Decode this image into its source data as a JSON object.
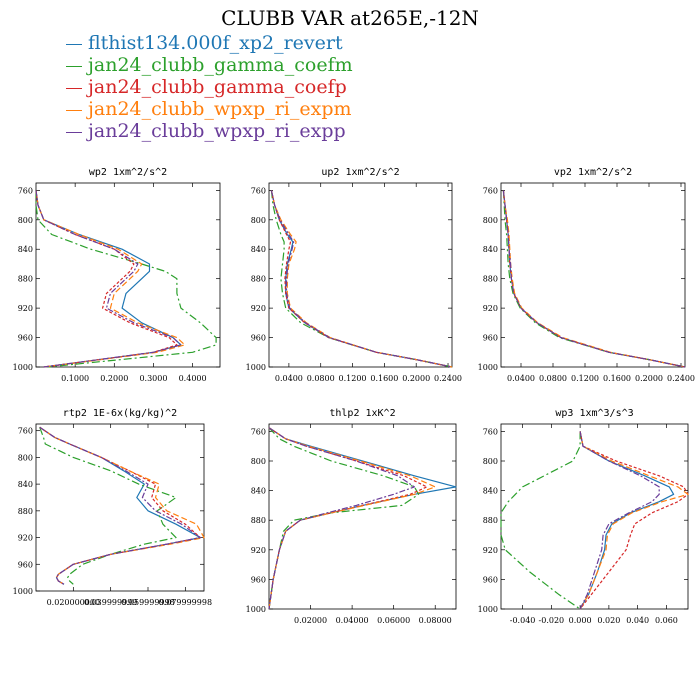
{
  "title": "CLUBB VAR at265E,-12N",
  "legend": {
    "items": [
      {
        "label": "flthist134.000f_xp2_revert",
        "color": "#1f77b4"
      },
      {
        "label": "jan24_clubb_gamma_coefm",
        "color": "#2ca02c"
      },
      {
        "label": "jan24_clubb_gamma_coefp",
        "color": "#d62728"
      },
      {
        "label": "jan24_clubb_wpxp_ri_expm",
        "color": "#ff7f0e"
      },
      {
        "label": "jan24_clubb_wpxp_ri_expp",
        "color": "#6a3d9a"
      }
    ]
  },
  "chart_data": [
    {
      "type": "line",
      "title": "wp2   1xm^2/s^2",
      "xlim": [
        0,
        0.47
      ],
      "xticks": [
        0.1,
        0.2,
        0.3,
        0.4
      ],
      "xticklabels": [
        "0.1000",
        "0.2000",
        "0.3000",
        "0.4000"
      ],
      "ylim": [
        1000,
        750
      ],
      "yticks": [
        760,
        800,
        840,
        880,
        920,
        960,
        1000
      ],
      "y": [
        760,
        780,
        800,
        820,
        840,
        860,
        870,
        880,
        900,
        920,
        940,
        960,
        970,
        980,
        1000
      ],
      "series": [
        {
          "color": "#1f77b4",
          "dash": "",
          "values": [
            0.0,
            0.005,
            0.02,
            0.11,
            0.22,
            0.29,
            0.29,
            0.27,
            0.23,
            0.22,
            0.27,
            0.35,
            0.37,
            0.3,
            0.02
          ]
        },
        {
          "color": "#2ca02c",
          "dash": "8,3,2,3",
          "values": [
            0.0,
            0.0,
            0.005,
            0.04,
            0.14,
            0.27,
            0.33,
            0.36,
            0.36,
            0.37,
            0.42,
            0.46,
            0.46,
            0.4,
            0.03
          ]
        },
        {
          "color": "#d62728",
          "dash": "3,2",
          "values": [
            0.0,
            0.005,
            0.02,
            0.1,
            0.2,
            0.25,
            0.24,
            0.22,
            0.18,
            0.17,
            0.24,
            0.34,
            0.36,
            0.3,
            0.02
          ]
        },
        {
          "color": "#ff7f0e",
          "dash": "6,3",
          "values": [
            0.0,
            0.005,
            0.02,
            0.11,
            0.21,
            0.27,
            0.26,
            0.24,
            0.2,
            0.19,
            0.26,
            0.36,
            0.38,
            0.31,
            0.02
          ]
        },
        {
          "color": "#6a3d9a",
          "dash": "6,2,2,2",
          "values": [
            0.0,
            0.005,
            0.02,
            0.1,
            0.2,
            0.26,
            0.25,
            0.23,
            0.19,
            0.18,
            0.25,
            0.35,
            0.37,
            0.3,
            0.02
          ]
        }
      ]
    },
    {
      "type": "line",
      "title": "up2   1xm^2/s^2",
      "xlim": [
        0.015,
        0.245
      ],
      "xticks": [
        0.04,
        0.08,
        0.12,
        0.16,
        0.2,
        0.24
      ],
      "xticklabels": [
        "0.0400",
        "0.0800",
        "0.1200",
        "0.1600",
        "0.2000",
        "0.2400"
      ],
      "ylim": [
        1000,
        750
      ],
      "yticks": [
        760,
        800,
        840,
        880,
        920,
        960,
        1000
      ],
      "y": [
        760,
        780,
        800,
        820,
        830,
        840,
        860,
        880,
        900,
        920,
        940,
        960,
        980,
        990,
        1000
      ],
      "series": [
        {
          "color": "#1f77b4",
          "dash": "",
          "values": [
            0.018,
            0.022,
            0.028,
            0.038,
            0.045,
            0.043,
            0.038,
            0.036,
            0.036,
            0.04,
            0.06,
            0.09,
            0.15,
            0.2,
            0.245
          ]
        },
        {
          "color": "#2ca02c",
          "dash": "8,3,2,3",
          "values": [
            0.018,
            0.02,
            0.024,
            0.03,
            0.034,
            0.034,
            0.032,
            0.03,
            0.032,
            0.036,
            0.055,
            0.09,
            0.15,
            0.2,
            0.245
          ]
        },
        {
          "color": "#d62728",
          "dash": "3,2",
          "values": [
            0.018,
            0.022,
            0.028,
            0.037,
            0.042,
            0.04,
            0.037,
            0.035,
            0.036,
            0.04,
            0.06,
            0.09,
            0.15,
            0.2,
            0.245
          ]
        },
        {
          "color": "#ff7f0e",
          "dash": "6,3",
          "values": [
            0.018,
            0.022,
            0.03,
            0.042,
            0.049,
            0.047,
            0.04,
            0.038,
            0.038,
            0.042,
            0.062,
            0.092,
            0.15,
            0.2,
            0.245
          ]
        },
        {
          "color": "#6a3d9a",
          "dash": "6,2,2,2",
          "values": [
            0.018,
            0.022,
            0.029,
            0.04,
            0.046,
            0.044,
            0.039,
            0.037,
            0.037,
            0.041,
            0.061,
            0.091,
            0.15,
            0.2,
            0.245
          ]
        }
      ]
    },
    {
      "type": "line",
      "title": "vp2   1xm^2/s^2",
      "xlim": [
        0.015,
        0.245
      ],
      "xticks": [
        0.04,
        0.08,
        0.12,
        0.16,
        0.2,
        0.24
      ],
      "xticklabels": [
        "0.0400",
        "0.0800",
        "0.1200",
        "0.1600",
        "0.2000",
        "0.2400"
      ],
      "ylim": [
        1000,
        750
      ],
      "yticks": [
        760,
        800,
        840,
        880,
        920,
        960,
        1000
      ],
      "y": [
        760,
        780,
        800,
        820,
        840,
        860,
        880,
        900,
        920,
        940,
        960,
        980,
        990,
        1000
      ],
      "series": [
        {
          "color": "#1f77b4",
          "dash": "",
          "values": [
            0.018,
            0.02,
            0.022,
            0.024,
            0.025,
            0.026,
            0.028,
            0.031,
            0.04,
            0.06,
            0.09,
            0.15,
            0.2,
            0.245
          ]
        },
        {
          "color": "#2ca02c",
          "dash": "8,3,2,3",
          "values": [
            0.018,
            0.019,
            0.02,
            0.022,
            0.023,
            0.024,
            0.026,
            0.03,
            0.039,
            0.058,
            0.088,
            0.15,
            0.2,
            0.245
          ]
        },
        {
          "color": "#d62728",
          "dash": "3,2",
          "values": [
            0.018,
            0.02,
            0.022,
            0.024,
            0.025,
            0.026,
            0.028,
            0.031,
            0.04,
            0.06,
            0.09,
            0.15,
            0.2,
            0.245
          ]
        },
        {
          "color": "#ff7f0e",
          "dash": "6,3",
          "values": [
            0.018,
            0.02,
            0.023,
            0.025,
            0.026,
            0.027,
            0.029,
            0.032,
            0.041,
            0.061,
            0.092,
            0.152,
            0.2,
            0.245
          ]
        },
        {
          "color": "#6a3d9a",
          "dash": "6,2,2,2",
          "values": [
            0.018,
            0.02,
            0.022,
            0.024,
            0.025,
            0.027,
            0.028,
            0.031,
            0.04,
            0.06,
            0.09,
            0.15,
            0.2,
            0.245
          ]
        }
      ]
    },
    {
      "type": "line",
      "title": "rtp2   1E-6x(kg/kg)^2",
      "xlim": [
        0.0,
        0.09
      ],
      "xticks": [
        0.02,
        0.04,
        0.06,
        0.08
      ],
      "xticklabels": [
        "0.020000000",
        "0.039999999",
        "0.059999998",
        "0.079999998"
      ],
      "ylim": [
        1000,
        750
      ],
      "yticks": [
        760,
        800,
        840,
        880,
        920,
        960,
        1000
      ],
      "y": [
        755,
        770,
        780,
        800,
        820,
        840,
        860,
        880,
        900,
        920,
        930,
        945,
        960,
        975,
        980,
        985,
        990
      ],
      "series": [
        {
          "color": "#1f77b4",
          "dash": "",
          "values": [
            0.002,
            0.01,
            0.018,
            0.035,
            0.047,
            0.058,
            0.054,
            0.06,
            0.075,
            0.088,
            0.07,
            0.04,
            0.02,
            0.012,
            0.011,
            0.012,
            0.015
          ]
        },
        {
          "color": "#2ca02c",
          "dash": "8,3,2,3",
          "values": [
            0.002,
            0.004,
            0.005,
            0.02,
            0.04,
            0.055,
            0.075,
            0.065,
            0.068,
            0.075,
            0.058,
            0.04,
            0.025,
            0.018,
            0.017,
            0.018,
            0.02
          ]
        },
        {
          "color": "#d62728",
          "dash": "3,2",
          "values": [
            0.002,
            0.01,
            0.018,
            0.035,
            0.05,
            0.064,
            0.062,
            0.068,
            0.08,
            0.088,
            0.07,
            0.04,
            0.02,
            0.012,
            0.011,
            0.012,
            0.015
          ]
        },
        {
          "color": "#ff7f0e",
          "dash": "6,3",
          "values": [
            0.002,
            0.01,
            0.018,
            0.035,
            0.05,
            0.066,
            0.064,
            0.07,
            0.086,
            0.09,
            0.072,
            0.04,
            0.02,
            0.012,
            0.011,
            0.012,
            0.015
          ]
        },
        {
          "color": "#6a3d9a",
          "dash": "6,2,2,2",
          "values": [
            0.002,
            0.01,
            0.018,
            0.035,
            0.048,
            0.06,
            0.057,
            0.064,
            0.078,
            0.088,
            0.07,
            0.04,
            0.02,
            0.012,
            0.011,
            0.012,
            0.015
          ]
        }
      ]
    },
    {
      "type": "line",
      "title": "thlp2   1xK^2",
      "xlim": [
        0.0,
        0.09
      ],
      "xticks": [
        0.02,
        0.04,
        0.06,
        0.08
      ],
      "xticklabels": [
        "0.02000",
        "0.04000",
        "0.06000",
        "0.08000"
      ],
      "ylim": [
        1000,
        750
      ],
      "yticks": [
        760,
        800,
        840,
        880,
        920,
        960,
        1000
      ],
      "y": [
        755,
        770,
        780,
        800,
        820,
        835,
        845,
        860,
        870,
        880,
        895,
        920,
        960,
        1000
      ],
      "series": [
        {
          "color": "#1f77b4",
          "dash": "",
          "values": [
            0.0,
            0.008,
            0.02,
            0.045,
            0.07,
            0.09,
            0.07,
            0.045,
            0.03,
            0.015,
            0.008,
            0.005,
            0.002,
            0.0
          ]
        },
        {
          "color": "#2ca02c",
          "dash": "8,3,2,3",
          "values": [
            0.0,
            0.005,
            0.012,
            0.03,
            0.055,
            0.07,
            0.072,
            0.064,
            0.03,
            0.012,
            0.007,
            0.005,
            0.002,
            0.0
          ]
        },
        {
          "color": "#d62728",
          "dash": "3,2",
          "values": [
            0.0,
            0.008,
            0.018,
            0.042,
            0.065,
            0.076,
            0.068,
            0.045,
            0.03,
            0.015,
            0.008,
            0.005,
            0.002,
            0.0
          ]
        },
        {
          "color": "#ff7f0e",
          "dash": "6,3",
          "values": [
            0.0,
            0.008,
            0.019,
            0.044,
            0.068,
            0.08,
            0.07,
            0.046,
            0.03,
            0.015,
            0.008,
            0.005,
            0.002,
            0.0
          ]
        },
        {
          "color": "#6a3d9a",
          "dash": "6,2,2,2",
          "values": [
            0.0,
            0.008,
            0.018,
            0.042,
            0.062,
            0.07,
            0.06,
            0.042,
            0.028,
            0.015,
            0.008,
            0.005,
            0.002,
            0.0
          ]
        }
      ]
    },
    {
      "type": "line",
      "title": "wp3   1xm^3/s^3",
      "xlim": [
        -0.055,
        0.075
      ],
      "xticks": [
        -0.04,
        -0.02,
        0.0,
        0.02,
        0.04,
        0.06
      ],
      "xticklabels": [
        "-0.040",
        "-0.020",
        "0.000",
        "0.020",
        "0.040",
        "0.060"
      ],
      "ylim": [
        1000,
        750
      ],
      "yticks": [
        760,
        800,
        840,
        880,
        920,
        960,
        1000
      ],
      "y": [
        760,
        780,
        800,
        820,
        835,
        845,
        855,
        870,
        885,
        900,
        920,
        950,
        980,
        1000
      ],
      "series": [
        {
          "color": "#1f77b4",
          "dash": "",
          "values": [
            0.0,
            0.002,
            0.02,
            0.045,
            0.062,
            0.065,
            0.055,
            0.035,
            0.022,
            0.018,
            0.017,
            0.012,
            0.006,
            0.0
          ]
        },
        {
          "color": "#2ca02c",
          "dash": "8,3,2,3",
          "values": [
            0.0,
            0.0,
            -0.005,
            -0.025,
            -0.04,
            -0.045,
            -0.05,
            -0.055,
            -0.055,
            -0.055,
            -0.052,
            -0.035,
            -0.015,
            0.0
          ]
        },
        {
          "color": "#d62728",
          "dash": "3,2",
          "values": [
            0.0,
            0.002,
            0.025,
            0.055,
            0.072,
            0.075,
            0.068,
            0.05,
            0.038,
            0.035,
            0.032,
            0.02,
            0.008,
            0.0
          ]
        },
        {
          "color": "#ff7f0e",
          "dash": "6,3",
          "values": [
            0.0,
            0.002,
            0.022,
            0.048,
            0.068,
            0.075,
            0.057,
            0.036,
            0.023,
            0.019,
            0.018,
            0.012,
            0.006,
            0.0
          ]
        },
        {
          "color": "#6a3d9a",
          "dash": "6,2,2,2",
          "values": [
            0.0,
            0.002,
            0.02,
            0.042,
            0.055,
            0.055,
            0.05,
            0.034,
            0.02,
            0.016,
            0.015,
            0.01,
            0.005,
            0.0
          ]
        }
      ]
    }
  ]
}
